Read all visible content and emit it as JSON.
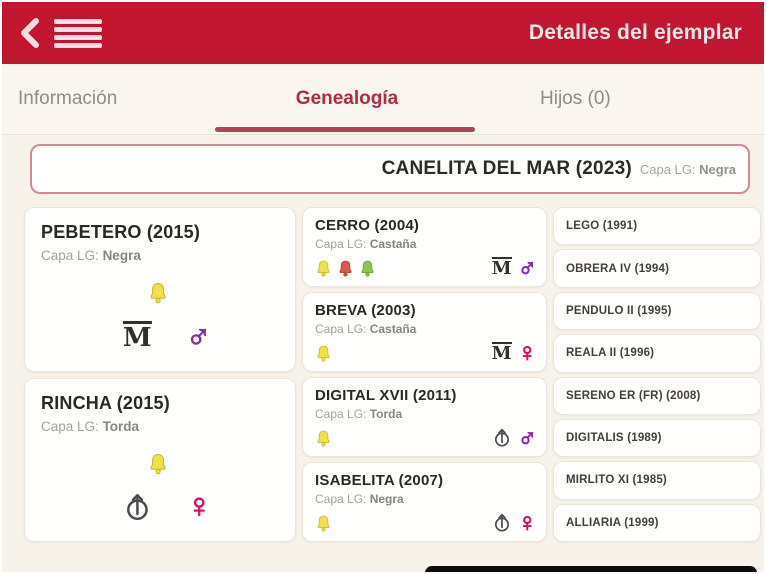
{
  "header": {
    "title": "Detalles del ejemplar"
  },
  "icons": {
    "back_glyph": "‹",
    "menu": "hamburger-icon",
    "male_symbol": "♂",
    "female_symbol": "♀",
    "m_logo_glyph": "M",
    "bell_names": [
      "yellow-bell-icon",
      "red-bell-icon",
      "green-bell-icon"
    ]
  },
  "tabs": {
    "info": "Información",
    "genealogy": "Genealogía",
    "children": "Hijos (0)",
    "active": "Genealogía"
  },
  "subject": {
    "name": "CANELITA DEL MAR (2023)",
    "coat_label": "Capa LG:",
    "coat_value": "Negra"
  },
  "pedigree": {
    "parents": [
      {
        "name": "PEBETERO (2015)",
        "coat_label": "Capa LG:",
        "coat_value": "Negra",
        "bells": [
          "yellow"
        ],
        "org_icon": "crowned-m-logo",
        "sex": "male"
      },
      {
        "name": "RINCHA (2015)",
        "coat_label": "Capa LG:",
        "coat_value": "Torda",
        "bells": [
          "yellow"
        ],
        "org_icon": "circle-arrow-logo",
        "sex": "female"
      }
    ],
    "grandparents": [
      {
        "name": "CERRO (2004)",
        "coat_label": "Capa LG:",
        "coat_value": "Castaña",
        "bells": [
          "yellow",
          "red",
          "green"
        ],
        "org_icon": "crowned-m-logo",
        "sex": "male"
      },
      {
        "name": "BREVA (2003)",
        "coat_label": "Capa LG:",
        "coat_value": "Castaña",
        "bells": [
          "yellow"
        ],
        "org_icon": "crowned-m-logo",
        "sex": "female"
      },
      {
        "name": "DIGITAL XVII (2011)",
        "coat_label": "Capa LG:",
        "coat_value": "Torda",
        "bells": [
          "yellow"
        ],
        "org_icon": "circle-arrow-logo",
        "sex": "male"
      },
      {
        "name": "ISABELITA (2007)",
        "coat_label": "Capa LG:",
        "coat_value": "Negra",
        "bells": [
          "yellow"
        ],
        "org_icon": "circle-arrow-logo",
        "sex": "female"
      }
    ],
    "great_grandparents": [
      {
        "name": "LEGO (1991)"
      },
      {
        "name": "OBRERA IV (1994)"
      },
      {
        "name": "PENDULO II (1995)"
      },
      {
        "name": "REALA II (1996)"
      },
      {
        "name": "SERENO ER (FR) (2008)"
      },
      {
        "name": "DIGITALIS (1989)"
      },
      {
        "name": "MIRLITO XI (1985)"
      },
      {
        "name": "ALLIARIA (1999)"
      }
    ]
  },
  "colors": {
    "header_bg": "#C2152F",
    "header_fg": "#F7E9EA",
    "tab_active": "#AF2C42",
    "tab_underline": "#B24458",
    "page_bg": "#F7F3EB",
    "banner_border": "#CE8C96",
    "male": "#8428BC",
    "female": "#D3116C",
    "bells": {
      "yellow": {
        "fill": "#EFE14A",
        "stroke": "#C9B62F"
      },
      "red": {
        "fill": "#DB5A50",
        "stroke": "#B93F36"
      },
      "green": {
        "fill": "#8FC24E",
        "stroke": "#6FA235"
      }
    }
  }
}
